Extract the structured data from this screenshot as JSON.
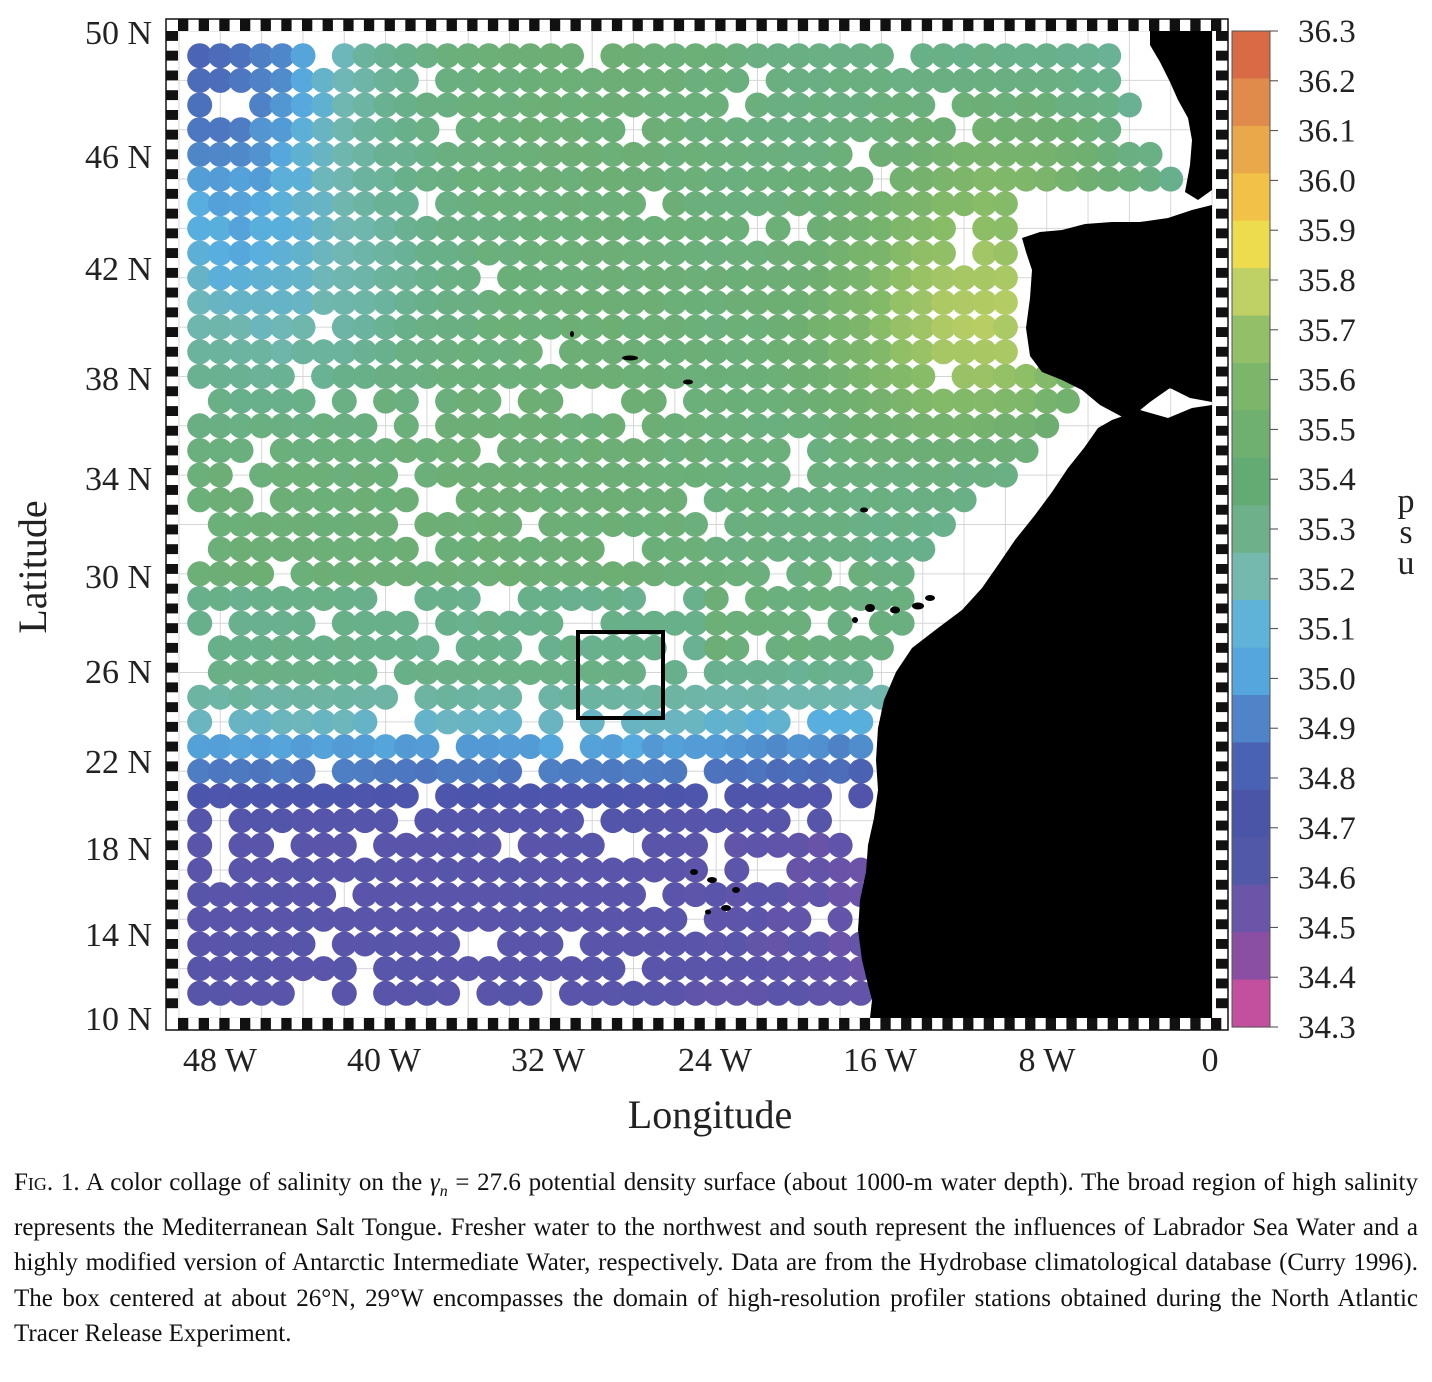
{
  "map": {
    "type": "heatmap",
    "x_ticks": [
      "48 W",
      "40 W",
      "32 W",
      "24 W",
      "16 W",
      "8 W",
      "0"
    ],
    "y_ticks": [
      "50 N",
      "46 N",
      "42 N",
      "38 N",
      "34 N",
      "30 N",
      "26 N",
      "22 N",
      "18 N",
      "14 N",
      "10 N"
    ],
    "xlabel": "Longitude",
    "ylabel": "Latitude",
    "colorbar": {
      "ticks": [
        "36.3",
        "36.2",
        "36.1",
        "36.0",
        "35.9",
        "35.8",
        "35.7",
        "35.6",
        "35.5",
        "35.4",
        "35.3",
        "35.2",
        "35.1",
        "35.0",
        "34.9",
        "34.8",
        "34.7",
        "34.6",
        "34.5",
        "34.4",
        "34.3"
      ],
      "unit": "psu",
      "colors": [
        "#d86a45",
        "#e08a4c",
        "#e9a849",
        "#f1c247",
        "#ecdc4e",
        "#bfd064",
        "#92bf67",
        "#7cb66b",
        "#6fb070",
        "#62ab72",
        "#6db08a",
        "#74b8ae",
        "#5fb3d8",
        "#55a6dc",
        "#4f84c8",
        "#4a62b4",
        "#4a55a8",
        "#5258a8",
        "#6a55a8",
        "#8a4fa3",
        "#c2509e"
      ]
    },
    "study_box": {
      "lon_center": -29,
      "lat_center": 26
    },
    "colors": {
      "land": "#000000",
      "background": "#ffffff",
      "box": "#000000"
    }
  },
  "caption": {
    "fig_label": "Fig. 1.",
    "text_before_symbol": " A color collage of salinity on the ",
    "symbol": "γ",
    "symbol_subscript": "n",
    "text_after_symbol": " = 27.6 potential density surface (about 1000-m water depth). The broad region of high salinity represents the Mediterranean Salt Tongue. Fresher water to the northwest and south represent the influences of Labrador Sea Water and a highly modified version of Antarctic Intermediate Water, respectively. Data are from the Hydrobase climatological database (Curry 1996). The box centered at about 26°N, 29°W encompasses the domain of high-resolution profiler stations obtained during the North Atlantic Tracer Release Experiment."
  }
}
